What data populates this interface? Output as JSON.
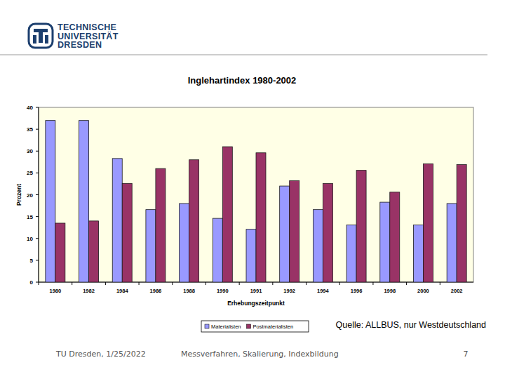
{
  "slide": {
    "logo_lines": [
      "TECHNISCHE",
      "UNIVERSITÄT",
      "DRESDEN"
    ],
    "source": "Quelle: ALLBUS, nur Westdeutschland",
    "footer": {
      "left": "TU Dresden, 1/25/2022",
      "center": "Messverfahren, Skalierung, Indexbildung",
      "page": 7
    }
  },
  "chart_data": {
    "type": "bar",
    "title": "Inglehartindex 1980-2002",
    "x_label": "Erhebungszeitpunkt",
    "y_label": "Prozent",
    "categories": [
      "1980",
      "1982",
      "1984",
      "1986",
      "1988",
      "1990",
      "1991",
      "1992",
      "1994",
      "1996",
      "1998",
      "2000",
      "2002"
    ],
    "series": [
      {
        "name": "Materialisten",
        "color": "#9999ff",
        "values": [
          37,
          37,
          28.3,
          16.6,
          18,
          14.6,
          12.1,
          22,
          16.6,
          13.1,
          18.3,
          13.1,
          18
        ]
      },
      {
        "name": "Postmaterialisten",
        "color": "#993366",
        "values": [
          13.5,
          14,
          22.6,
          26,
          28,
          31,
          29.6,
          23.2,
          22.6,
          25.6,
          20.6,
          27.1,
          26.9
        ]
      }
    ],
    "ylim": [
      0,
      40
    ],
    "yticks": [
      0,
      5,
      10,
      15,
      20,
      25,
      30,
      35,
      40
    ],
    "grid": false,
    "legend": "bottom"
  }
}
